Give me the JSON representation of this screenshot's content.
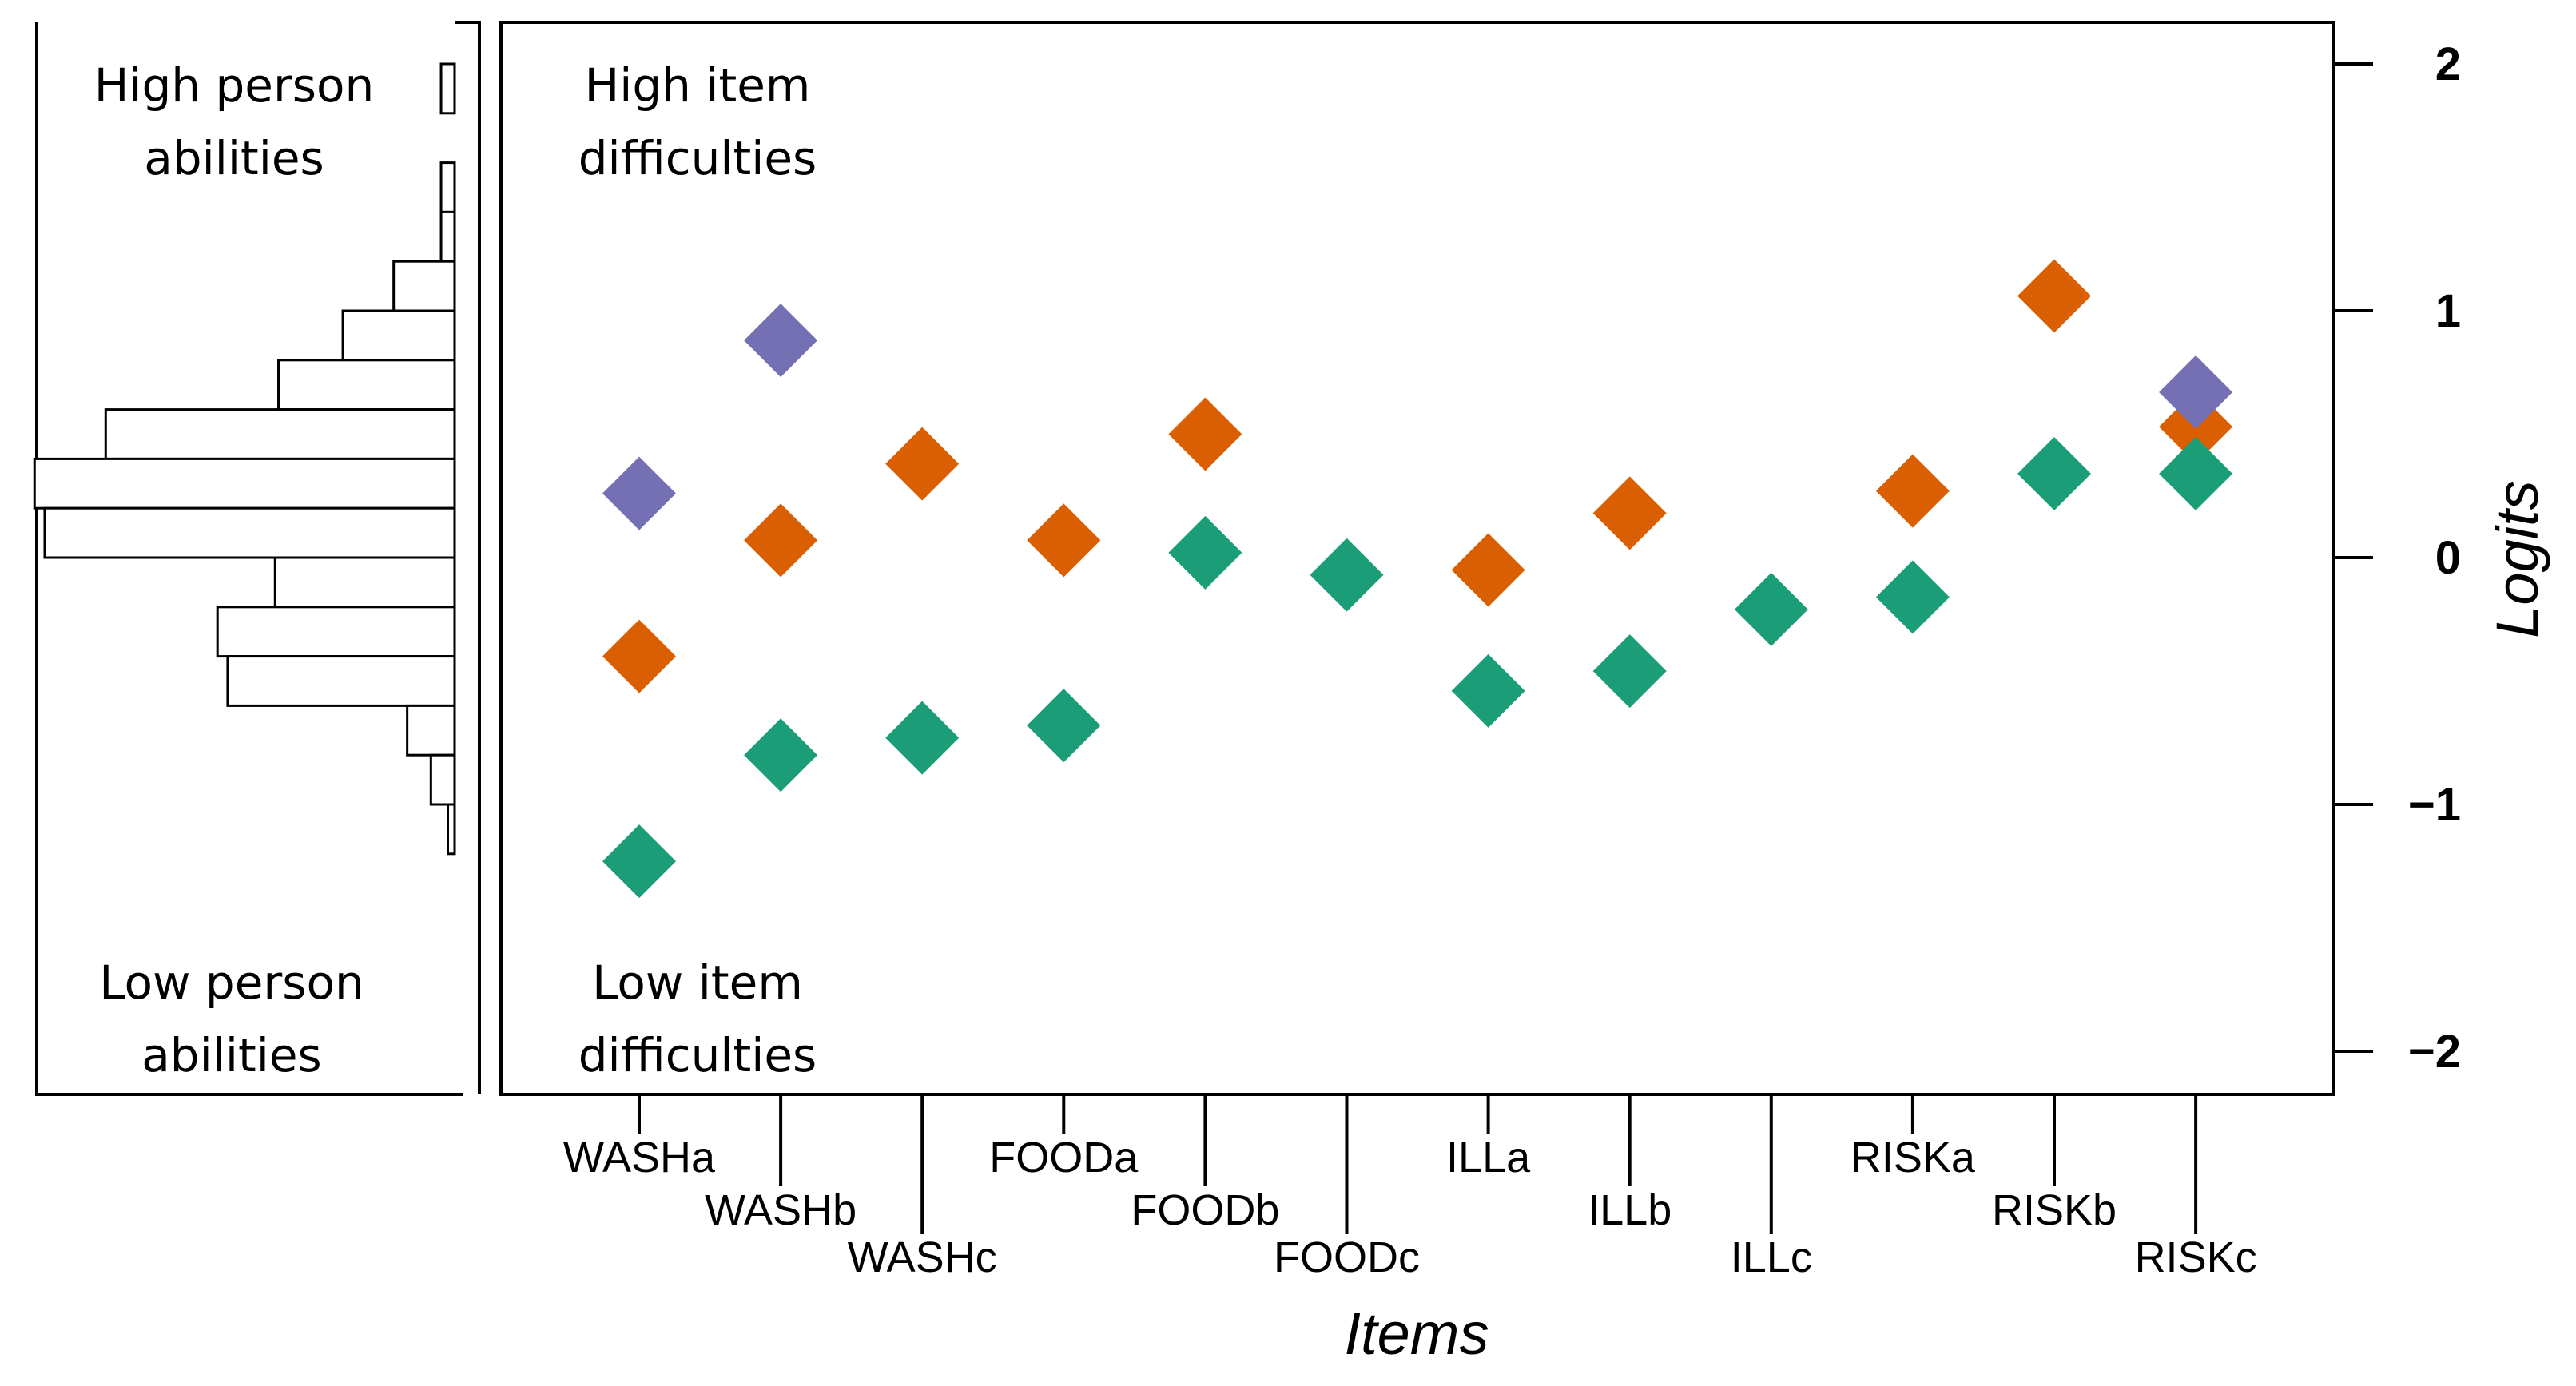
{
  "chart_data": {
    "type": "scatter",
    "title": "",
    "xlabel": "Items",
    "ylabel": "Logits",
    "ylim": [
      -2.2,
      2.17
    ],
    "yticks": [
      2,
      1,
      0,
      -1,
      -2
    ],
    "ytick_labels": [
      "2",
      "1",
      "0",
      "−1",
      "−2"
    ],
    "categories": [
      "WASHa",
      "WASHb",
      "WASHc",
      "FOODa",
      "FOODb",
      "FOODc",
      "ILLa",
      "ILLb",
      "ILLc",
      "RISKa",
      "RISKb",
      "RISKc"
    ],
    "series": [
      {
        "name": "green",
        "color": "#1b9e77",
        "values": [
          -1.23,
          -0.8,
          -0.73,
          -0.68,
          0.02,
          -0.07,
          -0.54,
          -0.46,
          -0.21,
          -0.16,
          0.34,
          0.34
        ]
      },
      {
        "name": "orange",
        "color": "#d95f02",
        "values": [
          -0.4,
          0.07,
          0.38,
          0.07,
          0.5,
          null,
          -0.05,
          0.18,
          null,
          0.27,
          1.06,
          0.53
        ]
      },
      {
        "name": "purple",
        "color": "#7570b3",
        "values": [
          0.26,
          0.88,
          null,
          null,
          null,
          null,
          null,
          null,
          null,
          null,
          null,
          0.67
        ]
      }
    ],
    "person_histogram": {
      "bin_edges": [
        2.0,
        1.8,
        1.6,
        1.4,
        1.2,
        1.0,
        0.8,
        0.6,
        0.4,
        0.2,
        0.0,
        -0.2,
        -0.4,
        -0.6,
        -0.8,
        -1.0,
        -1.2
      ],
      "counts": [
        4,
        0,
        4,
        4,
        18,
        33,
        52,
        103,
        124,
        121,
        53,
        70,
        67,
        14,
        7,
        2
      ]
    },
    "annotations": {
      "high_person": [
        "High person",
        "abilities"
      ],
      "low_person": [
        "Low person",
        "abilities"
      ],
      "high_item": [
        "High item",
        "difficulties"
      ],
      "low_item": [
        "Low item",
        "difficulties"
      ]
    }
  }
}
